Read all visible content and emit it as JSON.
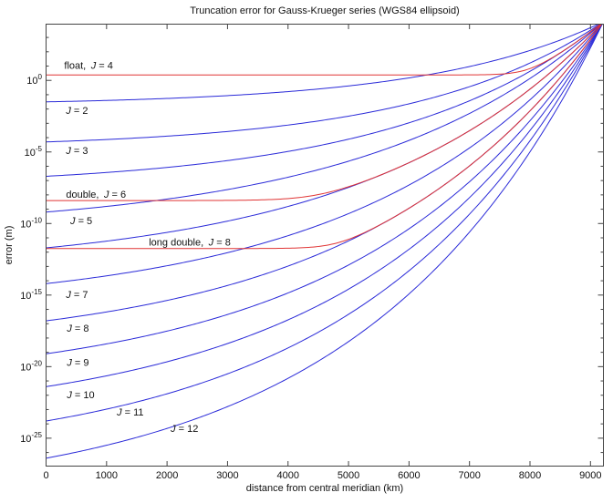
{
  "title": "Truncation error for Gauss-Krueger series (WGS84 ellipsoid)",
  "colors": {
    "curve_blue": "#2a2ad8",
    "curve_red": "#e03434",
    "axis": "#444444",
    "text": "#111111",
    "background": "#ffffff"
  },
  "axes": {
    "x": {
      "label": "distance from central meridian (km)",
      "min": 0,
      "max": 9214,
      "tick_values": [
        0,
        1000,
        2000,
        3000,
        4000,
        5000,
        6000,
        7000,
        8000,
        9000
      ]
    },
    "y": {
      "label": "error (m)",
      "scale": "log10",
      "min_exp": -26.95,
      "max_exp": 3.93,
      "major_tick_exponents": [
        0,
        -5,
        -10,
        -15,
        -20,
        -25
      ],
      "minor_tick_step": 1,
      "tick_label_base": "10"
    }
  },
  "chart_data": {
    "type": "line",
    "x_unit": "km",
    "y_unit": "log10 of error in meters",
    "grid": false,
    "legend": "inline curve labels",
    "series": [
      {
        "name": "J = 2",
        "J": 2,
        "role": "truncation",
        "log10_start": -1.5,
        "log10_end": 4.1,
        "shape_sigma": 3.2,
        "points_km_log10err": [
          [
            0,
            -1.5
          ],
          [
            1000,
            -1.4
          ],
          [
            2000,
            -1.26
          ],
          [
            3000,
            -1.06
          ],
          [
            4000,
            -0.78
          ],
          [
            5000,
            -0.38
          ],
          [
            6000,
            0.18
          ],
          [
            7000,
            0.98
          ],
          [
            8000,
            2.11
          ],
          [
            9000,
            3.71
          ],
          [
            9214,
            4.1
          ]
        ]
      },
      {
        "name": "J = 3",
        "J": 3,
        "role": "truncation",
        "log10_start": -4.3,
        "log10_end": 4.1,
        "shape_sigma": 3.0,
        "points_km_log10err": [
          [
            0,
            -4.3
          ],
          [
            1000,
            -4.13
          ],
          [
            2000,
            -3.9
          ],
          [
            3000,
            -3.57
          ],
          [
            4000,
            -3.12
          ],
          [
            5000,
            -2.49
          ],
          [
            6000,
            -1.63
          ],
          [
            7000,
            -0.43
          ],
          [
            8000,
            1.24
          ],
          [
            9000,
            3.54
          ],
          [
            9214,
            4.1
          ]
        ]
      },
      {
        "name": "J = 4",
        "J": 4,
        "role": "truncation",
        "log10_start": -6.7,
        "log10_end": 4.1,
        "shape_sigma": 2.7,
        "points_km_log10err": [
          [
            0,
            -6.7
          ],
          [
            1000,
            -6.43
          ],
          [
            2000,
            -6.08
          ],
          [
            3000,
            -5.6
          ],
          [
            4000,
            -4.96
          ],
          [
            5000,
            -4.1
          ],
          [
            6000,
            -2.95
          ],
          [
            7000,
            -1.41
          ],
          [
            8000,
            0.66
          ],
          [
            9000,
            3.44
          ],
          [
            9214,
            4.1
          ]
        ]
      },
      {
        "name": "J = 5",
        "J": 5,
        "role": "truncation",
        "log10_start": -9.2,
        "log10_end": 4.1,
        "shape_sigma": 2.4,
        "points_km_log10err": [
          [
            0,
            -9.2
          ],
          [
            1000,
            -8.8
          ],
          [
            2000,
            -8.29
          ],
          [
            3000,
            -7.63
          ],
          [
            4000,
            -6.76
          ],
          [
            5000,
            -5.64
          ],
          [
            6000,
            -4.18
          ],
          [
            7000,
            -2.29
          ],
          [
            8000,
            0.17
          ],
          [
            9000,
            3.36
          ],
          [
            9214,
            4.1
          ]
        ]
      },
      {
        "name": "J = 6",
        "J": 6,
        "role": "truncation",
        "log10_start": -11.7,
        "log10_end": 4.1,
        "shape_sigma": 2.4,
        "points_km_log10err": [
          [
            0,
            -11.7
          ],
          [
            1000,
            -11.23
          ],
          [
            2000,
            -10.62
          ],
          [
            3000,
            -9.83
          ],
          [
            4000,
            -8.8
          ],
          [
            5000,
            -7.47
          ],
          [
            6000,
            -5.74
          ],
          [
            7000,
            -3.49
          ],
          [
            8000,
            -0.57
          ],
          [
            9000,
            3.22
          ],
          [
            9214,
            4.1
          ]
        ]
      },
      {
        "name": "J = 7",
        "J": 7,
        "role": "truncation",
        "log10_start": -14.2,
        "log10_end": 4.1,
        "shape_sigma": 2.4,
        "points_km_log10err": [
          [
            0,
            -14.2
          ],
          [
            1000,
            -13.66
          ],
          [
            2000,
            -12.95
          ],
          [
            3000,
            -12.03
          ],
          [
            4000,
            -10.84
          ],
          [
            5000,
            -9.3
          ],
          [
            6000,
            -7.29
          ],
          [
            7000,
            -4.69
          ],
          [
            8000,
            -1.31
          ],
          [
            9000,
            3.08
          ],
          [
            9214,
            4.1
          ]
        ]
      },
      {
        "name": "J = 8",
        "J": 8,
        "role": "truncation",
        "log10_start": -16.8,
        "log10_end": 4.1,
        "shape_sigma": 2.4,
        "points_km_log10err": [
          [
            0,
            -16.8
          ],
          [
            1000,
            -16.18
          ],
          [
            2000,
            -15.37
          ],
          [
            3000,
            -14.33
          ],
          [
            4000,
            -12.96
          ],
          [
            5000,
            -11.2
          ],
          [
            6000,
            -8.91
          ],
          [
            7000,
            -5.94
          ],
          [
            8000,
            -2.08
          ],
          [
            9000,
            2.93
          ],
          [
            9214,
            4.1
          ]
        ]
      },
      {
        "name": "J = 9",
        "J": 9,
        "role": "truncation",
        "log10_start": -19.1,
        "log10_end": 4.1,
        "shape_sigma": 2.4,
        "points_km_log10err": [
          [
            0,
            -19.1
          ],
          [
            1000,
            -18.41
          ],
          [
            2000,
            -17.52
          ],
          [
            3000,
            -16.35
          ],
          [
            4000,
            -14.84
          ],
          [
            5000,
            -12.89
          ],
          [
            6000,
            -10.34
          ],
          [
            7000,
            -7.04
          ],
          [
            8000,
            -2.76
          ],
          [
            9000,
            2.8
          ],
          [
            9214,
            4.1
          ]
        ]
      },
      {
        "name": "J = 10",
        "J": 10,
        "role": "truncation",
        "log10_start": -21.4,
        "log10_end": 4.1,
        "shape_sigma": 2.4,
        "points_km_log10err": [
          [
            0,
            -21.4
          ],
          [
            1000,
            -20.64
          ],
          [
            2000,
            -19.66
          ],
          [
            3000,
            -18.38
          ],
          [
            4000,
            -16.72
          ],
          [
            5000,
            -14.57
          ],
          [
            6000,
            -11.77
          ],
          [
            7000,
            -8.15
          ],
          [
            8000,
            -3.44
          ],
          [
            9000,
            2.67
          ],
          [
            9214,
            4.1
          ]
        ]
      },
      {
        "name": "J = 11",
        "J": 11,
        "role": "truncation",
        "log10_start": -23.8,
        "log10_end": 4.1,
        "shape_sigma": 2.4,
        "points_km_log10err": [
          [
            0,
            -23.8
          ],
          [
            1000,
            -22.97
          ],
          [
            2000,
            -21.89
          ],
          [
            3000,
            -20.5
          ],
          [
            4000,
            -18.68
          ],
          [
            5000,
            -16.33
          ],
          [
            6000,
            -13.27
          ],
          [
            7000,
            -9.3
          ],
          [
            8000,
            -4.15
          ],
          [
            9000,
            2.54
          ],
          [
            9214,
            4.1
          ]
        ]
      },
      {
        "name": "J = 12",
        "J": 12,
        "role": "truncation",
        "log10_start": -26.4,
        "log10_end": 4.1,
        "shape_sigma": 2.4,
        "points_km_log10err": [
          [
            0,
            -26.4
          ],
          [
            1000,
            -25.49
          ],
          [
            2000,
            -24.32
          ],
          [
            3000,
            -22.79
          ],
          [
            4000,
            -20.8
          ],
          [
            5000,
            -18.23
          ],
          [
            6000,
            -14.89
          ],
          [
            7000,
            -10.55
          ],
          [
            8000,
            -4.92
          ],
          [
            9000,
            2.4
          ],
          [
            9214,
            4.1
          ]
        ]
      }
    ],
    "roundoff_series": [
      {
        "name": "float, J = 4",
        "precision": "float",
        "tracks_J": 4,
        "log10_floor": 0.38,
        "points_km_log10err": [
          [
            0,
            0.38
          ],
          [
            2000,
            0.38
          ],
          [
            4000,
            0.38
          ],
          [
            6000,
            0.38
          ],
          [
            7000,
            0.39
          ],
          [
            8000,
            0.84
          ],
          [
            8500,
            1.92
          ],
          [
            9000,
            3.44
          ],
          [
            9214,
            4.1
          ]
        ]
      },
      {
        "name": "double, J = 6",
        "precision": "double",
        "tracks_J": 6,
        "log10_floor": -8.4,
        "points_km_log10err": [
          [
            0,
            -8.4
          ],
          [
            1000,
            -8.4
          ],
          [
            2000,
            -8.4
          ],
          [
            3000,
            -8.39
          ],
          [
            4000,
            -8.25
          ],
          [
            5000,
            -7.42
          ],
          [
            6000,
            -5.73
          ],
          [
            7000,
            -3.49
          ],
          [
            8000,
            -0.57
          ],
          [
            9000,
            3.22
          ],
          [
            9214,
            4.1
          ]
        ]
      },
      {
        "name": "long double, J = 8",
        "precision": "long double",
        "tracks_J": 8,
        "log10_floor": -11.75,
        "points_km_log10err": [
          [
            0,
            -11.75
          ],
          [
            2000,
            -11.75
          ],
          [
            4000,
            -11.72
          ],
          [
            5000,
            -11.09
          ],
          [
            6000,
            -8.91
          ],
          [
            7000,
            -5.94
          ],
          [
            8000,
            -2.08
          ],
          [
            9000,
            2.93
          ],
          [
            9214,
            4.1
          ]
        ]
      }
    ],
    "labels": [
      {
        "prefix": "float,",
        "j": 4,
        "km": 300,
        "log10": 1.05
      },
      {
        "prefix": "",
        "j": 2,
        "km": 330,
        "log10": -2.1
      },
      {
        "prefix": "",
        "j": 3,
        "km": 330,
        "log10": -4.9
      },
      {
        "prefix": "double,",
        "j": 6,
        "km": 330,
        "log10": -7.95
      },
      {
        "prefix": "",
        "j": 5,
        "km": 400,
        "log10": -9.8
      },
      {
        "prefix": "long double,",
        "j": 8,
        "km": 1700,
        "log10": -11.3
      },
      {
        "prefix": "",
        "j": 7,
        "km": 330,
        "log10": -14.95
      },
      {
        "prefix": "",
        "j": 8,
        "km": 345,
        "log10": -17.3
      },
      {
        "prefix": "",
        "j": 9,
        "km": 345,
        "log10": -19.7
      },
      {
        "prefix": "",
        "j": 10,
        "km": 345,
        "log10": -21.95
      },
      {
        "prefix": "",
        "j": 11,
        "km": 1170,
        "log10": -23.15
      },
      {
        "prefix": "",
        "j": 12,
        "km": 2060,
        "log10": -24.3
      }
    ]
  }
}
